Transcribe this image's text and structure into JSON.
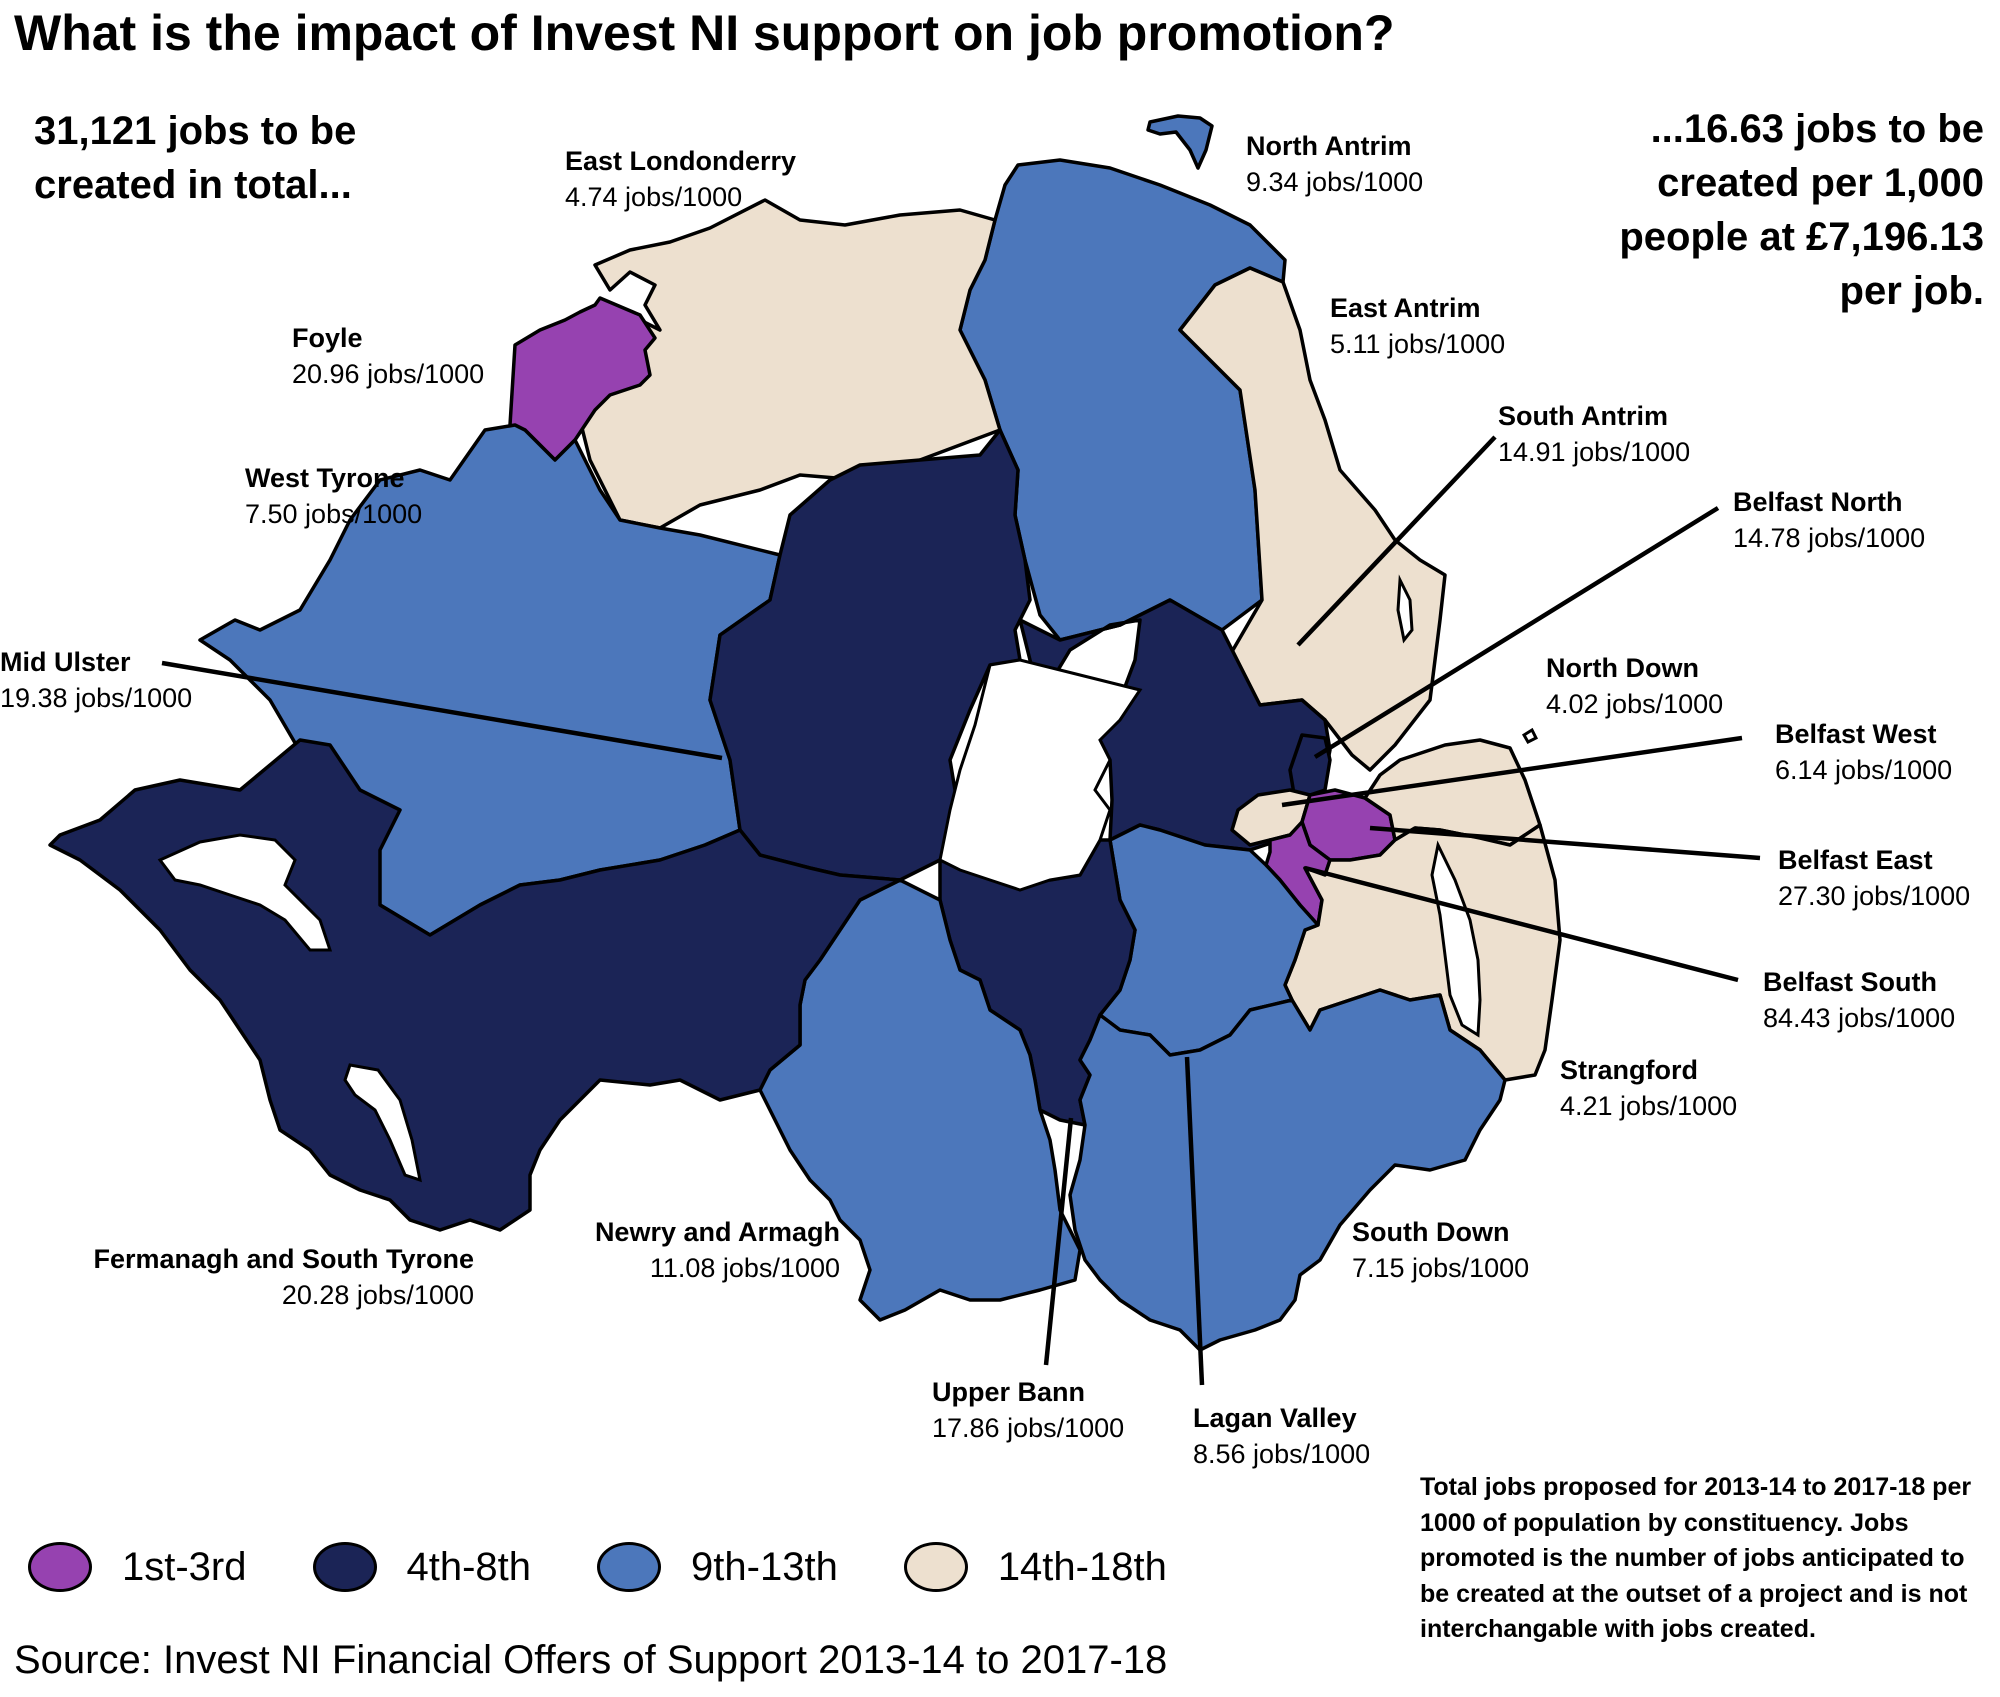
{
  "title": "What is the impact of Invest NI support on job promotion?",
  "summary_left": [
    "31,121 jobs to be",
    "created in total..."
  ],
  "summary_right": [
    "...16.63 jobs to be",
    "created per 1,000",
    "people at £7,196.13",
    "per job."
  ],
  "colors": {
    "1st-3rd": "#9642b0",
    "4th-8th": "#1b2456",
    "9th-13th": "#4c77bb",
    "14th-18th": "#ede0cf",
    "border": "#000000",
    "lake": "#ffffff"
  },
  "constituencies": [
    {
      "name": "North Antrim",
      "value": "9.34 jobs/1000",
      "band": "9th-13th"
    },
    {
      "name": "East Londonderry",
      "value": "4.74 jobs/1000",
      "band": "14th-18th"
    },
    {
      "name": "Foyle",
      "value": "20.96 jobs/1000",
      "band": "1st-3rd"
    },
    {
      "name": "East Antrim",
      "value": "5.11 jobs/1000",
      "band": "14th-18th"
    },
    {
      "name": "South Antrim",
      "value": "14.91 jobs/1000",
      "band": "4th-8th"
    },
    {
      "name": "West Tyrone",
      "value": "7.50 jobs/1000",
      "band": "9th-13th"
    },
    {
      "name": "Belfast North",
      "value": "14.78 jobs/1000",
      "band": "4th-8th"
    },
    {
      "name": "Mid Ulster",
      "value": "19.38 jobs/1000",
      "band": "4th-8th"
    },
    {
      "name": "North Down",
      "value": "4.02 jobs/1000",
      "band": "14th-18th"
    },
    {
      "name": "Belfast West",
      "value": "6.14 jobs/1000",
      "band": "14th-18th"
    },
    {
      "name": "Belfast East",
      "value": "27.30 jobs/1000",
      "band": "1st-3rd"
    },
    {
      "name": "Belfast South",
      "value": "84.43 jobs/1000",
      "band": "1st-3rd"
    },
    {
      "name": "Strangford",
      "value": "4.21 jobs/1000",
      "band": "14th-18th"
    },
    {
      "name": "Fermanagh and South Tyrone",
      "value": "20.28 jobs/1000",
      "band": "4th-8th"
    },
    {
      "name": "Newry and Armagh",
      "value": "11.08 jobs/1000",
      "band": "9th-13th"
    },
    {
      "name": "South Down",
      "value": "7.15 jobs/1000",
      "band": "9th-13th"
    },
    {
      "name": "Upper Bann",
      "value": "17.86 jobs/1000",
      "band": "4th-8th"
    },
    {
      "name": "Lagan Valley",
      "value": "8.56 jobs/1000",
      "band": "9th-13th"
    }
  ],
  "legend": [
    "1st-3rd",
    "4th-8th",
    "9th-13th",
    "14th-18th"
  ],
  "source": "Source: Invest NI Financial Offers of Support 2013-14 to 2017-18",
  "note": "Total jobs proposed for 2013-14 to 2017-18 per 1000 of population by constituency. Jobs promoted is the number of jobs anticipated to be created at the outset of a project and is not interchangable with jobs created."
}
